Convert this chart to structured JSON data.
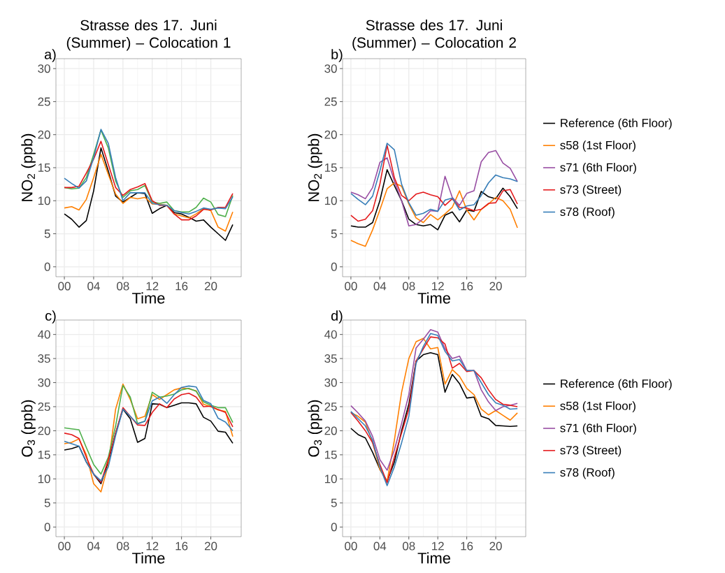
{
  "chart_data": [
    {
      "type": "line",
      "title": "Strasse des 17. Juni (Summer) – Colocation 1",
      "xlabel": "Time",
      "ylabel": "NO$_{2}$ (ppb)",
      "annotations": [
        "a)"
      ],
      "x": [
        0,
        1,
        2,
        3,
        4,
        5,
        6,
        7,
        8,
        9,
        10,
        11,
        12,
        13,
        14,
        15,
        16,
        17,
        18,
        19,
        20,
        21,
        22,
        23
      ],
      "xlim": [
        -1.15,
        24.15
      ],
      "ylim": [
        -1.5,
        31.5
      ],
      "xticks": [
        {
          "value": 0,
          "label": "00"
        },
        {
          "value": 4,
          "label": "04"
        },
        {
          "value": 8,
          "label": "08"
        },
        {
          "value": 12,
          "label": "12"
        },
        {
          "value": 16,
          "label": "16"
        },
        {
          "value": 20,
          "label": "20"
        }
      ],
      "yticks": [
        0,
        5,
        10,
        15,
        20,
        25,
        30
      ],
      "grid": true,
      "legend": false,
      "series": [
        {
          "color": "#000000",
          "values": [
            8.0,
            7.2,
            6.0,
            7.0,
            11.5,
            18.0,
            14.5,
            10.7,
            9.8,
            10.5,
            11.2,
            11.1,
            8.1,
            8.8,
            9.3,
            8.2,
            8.0,
            7.5,
            6.9,
            7.1,
            6.0,
            5.0,
            4.0,
            6.4
          ]
        },
        {
          "color": "#ff7f00",
          "values": [
            8.9,
            9.1,
            8.6,
            10.2,
            13.5,
            17.0,
            14.0,
            11.0,
            9.6,
            10.5,
            10.3,
            10.5,
            9.5,
            9.5,
            9.3,
            8.0,
            7.7,
            7.4,
            8.0,
            8.8,
            8.5,
            6.0,
            5.4,
            8.3
          ]
        },
        {
          "color": "#4daf4a",
          "values": [
            12.0,
            11.8,
            11.9,
            13.5,
            17.0,
            20.7,
            18.0,
            13.0,
            10.5,
            11.5,
            11.7,
            12.3,
            9.8,
            9.6,
            9.8,
            8.5,
            8.3,
            8.3,
            9.0,
            10.4,
            9.8,
            7.9,
            7.6,
            10.8
          ]
        },
        {
          "color": "#e41a1c",
          "values": [
            12.0,
            12.0,
            12.2,
            14.2,
            16.3,
            19.0,
            15.5,
            12.0,
            10.8,
            11.7,
            12.1,
            12.6,
            10.0,
            9.3,
            9.3,
            8.0,
            7.1,
            7.1,
            7.7,
            8.7,
            8.6,
            9.0,
            9.0,
            11.1
          ]
        },
        {
          "color": "#377eb8",
          "values": [
            13.4,
            12.6,
            11.9,
            13.0,
            16.5,
            20.8,
            18.7,
            13.5,
            10.0,
            11.2,
            11.2,
            11.2,
            9.6,
            9.4,
            9.3,
            8.5,
            8.2,
            8.0,
            8.4,
            8.9,
            8.7,
            8.9,
            8.8,
            10.6
          ]
        }
      ]
    },
    {
      "type": "line",
      "title": "Strasse des 17. Juni (Summer) – Colocation 2",
      "xlabel": "Time",
      "ylabel": "NO$_{2}$ (ppb)",
      "annotations": [
        "b)"
      ],
      "x": [
        0,
        1,
        2,
        3,
        4,
        5,
        6,
        7,
        8,
        9,
        10,
        11,
        12,
        13,
        14,
        15,
        16,
        17,
        18,
        19,
        20,
        21,
        22,
        23
      ],
      "xlim": [
        -1.15,
        24.15
      ],
      "ylim": [
        -1.5,
        31.5
      ],
      "xticks": [
        {
          "value": 0,
          "label": "00"
        },
        {
          "value": 4,
          "label": "04"
        },
        {
          "value": 8,
          "label": "08"
        },
        {
          "value": 12,
          "label": "12"
        },
        {
          "value": 16,
          "label": "16"
        },
        {
          "value": 20,
          "label": "20"
        }
      ],
      "yticks": [
        0,
        5,
        10,
        15,
        20,
        25,
        30
      ],
      "grid": true,
      "legend": "right",
      "series": [
        {
          "name": "Reference (6th Floor)",
          "color": "#000000",
          "values": [
            6.2,
            6.0,
            6.0,
            6.7,
            10.0,
            14.7,
            12.3,
            10.0,
            7.2,
            6.4,
            6.2,
            6.4,
            5.6,
            7.8,
            8.3,
            6.8,
            8.6,
            8.4,
            11.4,
            10.6,
            10.3,
            11.9,
            10.6,
            8.8
          ]
        },
        {
          "name": "s58 (1st Floor)",
          "color": "#ff7f00",
          "values": [
            4.0,
            3.5,
            3.1,
            5.6,
            8.6,
            11.8,
            12.7,
            12.2,
            9.5,
            7.4,
            6.7,
            7.9,
            7.1,
            8.0,
            9.0,
            11.5,
            8.6,
            7.1,
            8.7,
            9.5,
            10.5,
            10.0,
            8.7,
            5.9
          ]
        },
        {
          "name": "s71 (6th Floor)",
          "color": "#984ea3",
          "values": [
            11.3,
            10.9,
            10.3,
            12.0,
            15.8,
            16.5,
            13.0,
            10.0,
            6.2,
            6.4,
            7.3,
            8.5,
            8.4,
            13.7,
            10.5,
            9.3,
            11.1,
            11.5,
            15.9,
            17.3,
            17.6,
            15.7,
            14.9,
            12.9
          ]
        },
        {
          "name": "s73 (Street)",
          "color": "#e41a1c",
          "values": [
            7.8,
            6.9,
            7.2,
            8.5,
            12.5,
            18.4,
            13.5,
            10.8,
            10.0,
            11.0,
            11.3,
            10.9,
            10.6,
            9.3,
            10.3,
            9.0,
            8.9,
            8.5,
            8.7,
            9.6,
            9.7,
            11.5,
            11.7,
            9.5
          ]
        },
        {
          "name": "s78 (Roof)",
          "color": "#377eb8",
          "values": [
            11.1,
            10.2,
            9.4,
            10.7,
            14.5,
            18.7,
            17.7,
            12.5,
            9.7,
            7.8,
            8.1,
            8.7,
            8.4,
            10.1,
            10.4,
            8.6,
            9.2,
            9.4,
            10.8,
            12.7,
            13.9,
            13.5,
            13.3,
            12.9
          ]
        }
      ]
    },
    {
      "type": "line",
      "xlabel": "Time",
      "ylabel": "O$_{3}$ (ppb)",
      "annotations": [
        "c)"
      ],
      "x": [
        0,
        1,
        2,
        3,
        4,
        5,
        6,
        7,
        8,
        9,
        10,
        11,
        12,
        13,
        14,
        15,
        16,
        17,
        18,
        19,
        20,
        21,
        22,
        23
      ],
      "xlim": [
        -1.15,
        24.15
      ],
      "ylim": [
        -2,
        43
      ],
      "xticks": [
        {
          "value": 0,
          "label": "00"
        },
        {
          "value": 4,
          "label": "04"
        },
        {
          "value": 8,
          "label": "08"
        },
        {
          "value": 12,
          "label": "12"
        },
        {
          "value": 16,
          "label": "16"
        },
        {
          "value": 20,
          "label": "20"
        }
      ],
      "yticks": [
        0,
        5,
        10,
        15,
        20,
        25,
        30,
        35,
        40
      ],
      "grid": true,
      "legend": false,
      "series": [
        {
          "color": "#000000",
          "values": [
            16.0,
            16.3,
            16.8,
            13.5,
            11.0,
            9.0,
            13.5,
            19.5,
            24.5,
            22.5,
            17.6,
            18.4,
            25.6,
            25.5,
            24.8,
            25.3,
            25.8,
            25.8,
            25.6,
            22.8,
            22.0,
            19.9,
            19.7,
            17.4
          ]
        },
        {
          "color": "#ff7f00",
          "values": [
            17.3,
            17.6,
            18.3,
            15.0,
            9.0,
            7.3,
            13.0,
            24.5,
            29.7,
            26.5,
            22.5,
            23.0,
            27.5,
            26.5,
            27.5,
            28.5,
            28.9,
            28.7,
            28.3,
            25.5,
            25.0,
            24.3,
            24.0,
            18.8
          ]
        },
        {
          "color": "#4daf4a",
          "values": [
            20.6,
            20.4,
            20.2,
            16.5,
            13.0,
            11.0,
            14.5,
            21.0,
            29.4,
            27.0,
            21.5,
            22.0,
            28.0,
            27.0,
            27.2,
            27.6,
            28.5,
            28.8,
            28.2,
            26.0,
            25.3,
            24.8,
            24.8,
            21.7
          ]
        },
        {
          "color": "#e41a1c",
          "values": [
            19.5,
            19.2,
            18.4,
            14.5,
            11.0,
            9.3,
            14.0,
            19.5,
            24.8,
            23.0,
            21.2,
            21.1,
            23.8,
            25.6,
            24.8,
            26.6,
            27.5,
            27.8,
            27.0,
            25.0,
            25.1,
            24.4,
            23.8,
            20.8
          ]
        },
        {
          "color": "#377eb8",
          "values": [
            17.8,
            17.3,
            16.8,
            13.5,
            11.0,
            9.6,
            12.5,
            19.0,
            24.5,
            23.0,
            21.4,
            22.0,
            26.2,
            27.0,
            25.7,
            27.5,
            29.0,
            29.3,
            29.1,
            26.3,
            25.6,
            22.6,
            21.8,
            20.0
          ]
        }
      ]
    },
    {
      "type": "line",
      "xlabel": "Time",
      "ylabel": "O$_{3}$ (ppb)",
      "annotations": [
        "d)"
      ],
      "x": [
        0,
        1,
        2,
        3,
        4,
        5,
        6,
        7,
        8,
        9,
        10,
        11,
        12,
        13,
        14,
        15,
        16,
        17,
        18,
        19,
        20,
        21,
        22,
        23
      ],
      "xlim": [
        -1.15,
        24.15
      ],
      "ylim": [
        -2,
        43
      ],
      "xticks": [
        {
          "value": 0,
          "label": "00"
        },
        {
          "value": 4,
          "label": "04"
        },
        {
          "value": 8,
          "label": "08"
        },
        {
          "value": 12,
          "label": "12"
        },
        {
          "value": 16,
          "label": "16"
        },
        {
          "value": 20,
          "label": "20"
        }
      ],
      "yticks": [
        0,
        5,
        10,
        15,
        20,
        25,
        30,
        35,
        40
      ],
      "grid": true,
      "legend": "right",
      "series": [
        {
          "name": "Reference (6th Floor)",
          "color": "#000000",
          "values": [
            20.5,
            19.2,
            18.5,
            15.5,
            12.0,
            9.5,
            13.5,
            20.0,
            25.5,
            34.5,
            35.8,
            36.2,
            35.8,
            28.0,
            31.7,
            29.8,
            26.8,
            27.0,
            23.0,
            22.5,
            21.1,
            21.0,
            20.9,
            21.0
          ]
        },
        {
          "name": "s58 (1st Floor)",
          "color": "#ff7f00",
          "values": [
            23.8,
            23.0,
            21.8,
            17.5,
            12.0,
            9.5,
            18.0,
            28.0,
            35.0,
            38.5,
            39.2,
            37.0,
            37.3,
            29.7,
            32.7,
            31.3,
            28.8,
            27.5,
            24.5,
            23.3,
            24.2,
            23.2,
            22.2,
            23.7
          ]
        },
        {
          "name": "s71 (6th Floor)",
          "color": "#984ea3",
          "values": [
            25.2,
            23.7,
            22.0,
            18.8,
            14.0,
            11.8,
            16.0,
            21.5,
            27.5,
            37.2,
            39.0,
            41.0,
            40.5,
            37.0,
            35.0,
            35.5,
            32.5,
            32.5,
            28.5,
            26.0,
            24.2,
            25.0,
            25.3,
            25.7
          ]
        },
        {
          "name": "s73 (Street)",
          "color": "#e41a1c",
          "values": [
            23.8,
            22.0,
            20.0,
            17.5,
            13.0,
            9.2,
            14.5,
            19.5,
            24.5,
            34.5,
            37.0,
            39.5,
            39.3,
            38.0,
            33.0,
            34.0,
            32.3,
            32.5,
            31.0,
            28.5,
            26.5,
            25.5,
            25.3,
            25.0
          ]
        },
        {
          "name": "s78 (Roof)",
          "color": "#377eb8",
          "values": [
            24.0,
            22.5,
            21.0,
            18.0,
            12.5,
            8.6,
            12.5,
            17.5,
            23.0,
            34.0,
            37.5,
            40.2,
            39.8,
            36.5,
            34.5,
            34.8,
            32.5,
            32.5,
            30.0,
            27.5,
            25.8,
            25.3,
            24.5,
            24.6
          ]
        }
      ]
    }
  ]
}
